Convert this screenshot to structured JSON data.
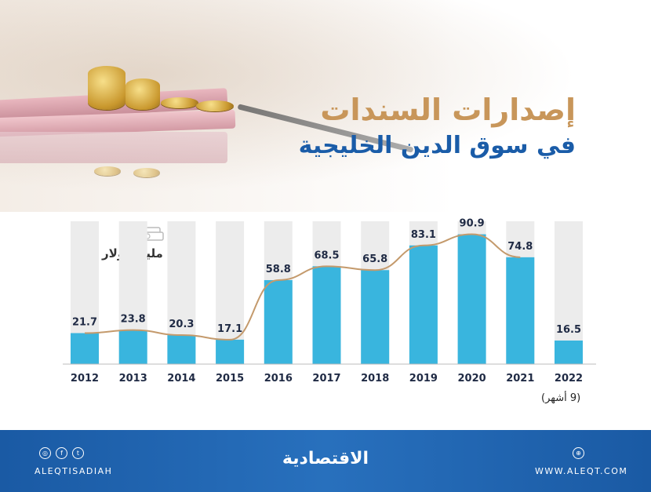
{
  "header": {
    "title": "إصدارات السندات",
    "subtitle": "في سوق الدين الخليجية"
  },
  "unit_label": "مليار دولار",
  "note": "(9 أشهر)",
  "footer": {
    "logo": "الاقتصادية",
    "handle": "ALEQTISADIAH",
    "website": "WWW.ALEQT.COM"
  },
  "colors": {
    "bar": "#39b5de",
    "bar_track": "#ececec",
    "trend_line": "#c49a6c",
    "title_gold": "#c8965a",
    "title_blue": "#1a5ca8",
    "footer_blue": "#1d63b0"
  },
  "chart_data": {
    "type": "bar",
    "categories": [
      "2012",
      "2013",
      "2014",
      "2015",
      "2016",
      "2017",
      "2018",
      "2019",
      "2020",
      "2021",
      "2022"
    ],
    "values": [
      21.7,
      23.8,
      20.3,
      17.1,
      58.8,
      68.5,
      65.8,
      83.1,
      90.9,
      74.8,
      16.5
    ],
    "title": "إصدارات السندات",
    "ylabel": "مليار دولار",
    "ylim": [
      0,
      100
    ],
    "grid": false,
    "data_labels": true,
    "trend_line_through": [
      "2012",
      "2013",
      "2014",
      "2015",
      "2016",
      "2017",
      "2018",
      "2019",
      "2020",
      "2021"
    ]
  }
}
